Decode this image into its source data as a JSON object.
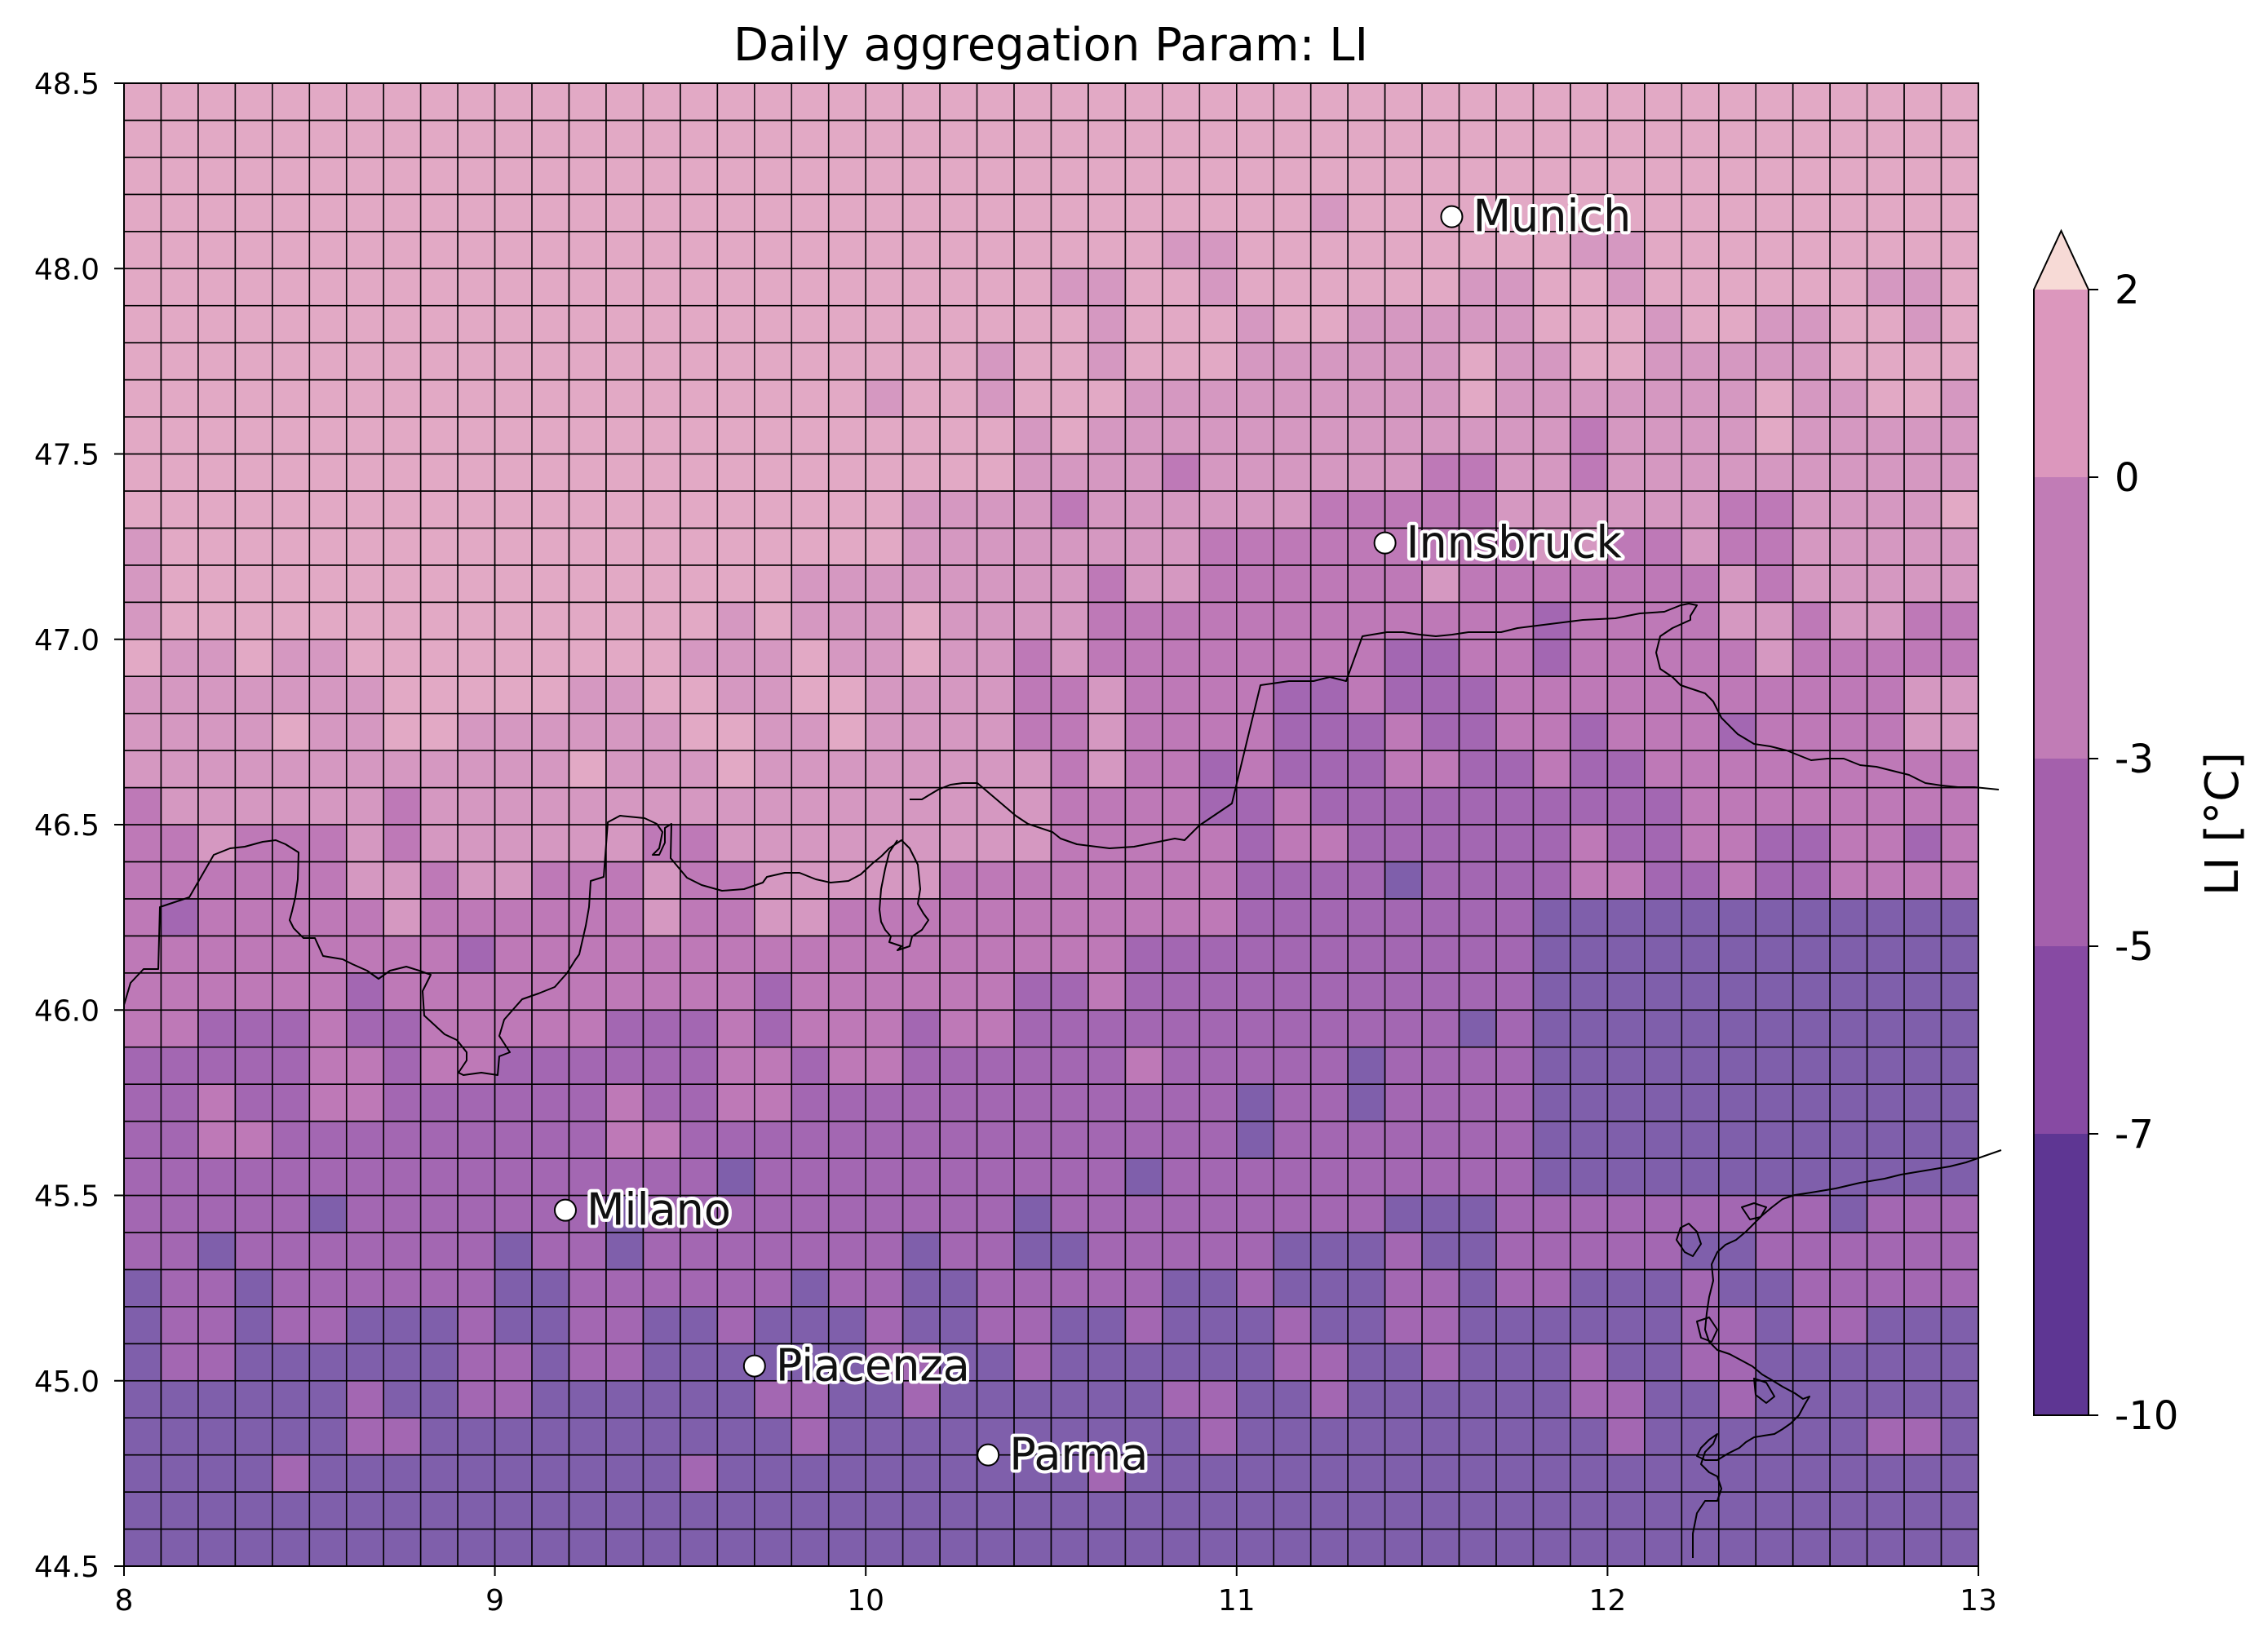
{
  "title": "Daily aggregation Param: LI",
  "map": {
    "lon_range": [
      8,
      13
    ],
    "lat_range": [
      44.5,
      48.5
    ],
    "x_ticks": [
      "8",
      "9",
      "10",
      "11",
      "12",
      "13"
    ],
    "y_ticks": [
      "44.5",
      "45.0",
      "45.5",
      "46.0",
      "46.5",
      "47.0",
      "47.5",
      "48.0",
      "48.5"
    ],
    "grid_resolution_deg": 0.1,
    "cell_edge_color": "#000000",
    "cities": [
      {
        "name": "Munich",
        "lon": 11.58,
        "lat": 48.14
      },
      {
        "name": "Innsbruck",
        "lon": 11.4,
        "lat": 47.26
      },
      {
        "name": "Milano",
        "lon": 9.19,
        "lat": 45.46
      },
      {
        "name": "Piacenza",
        "lon": 9.7,
        "lat": 45.04
      },
      {
        "name": "Parma",
        "lon": 10.33,
        "lat": 44.8
      }
    ]
  },
  "colorbar": {
    "label": "LI [°C]",
    "ticks": [
      "2",
      "0",
      "-3",
      "-5",
      "-7",
      "-10"
    ],
    "levels": [
      -10,
      -7,
      -5,
      -3,
      0,
      2
    ],
    "colors": [
      "#5e3693",
      "#874aa3",
      "#a460ac",
      "#c17cb6",
      "#dc97bd"
    ],
    "extend_max_color": "#f7dad6"
  },
  "cell_colors": [
    "#7f5fab",
    "#a367b2",
    "#be79b7",
    "#d598c1",
    "#e2a9c5"
  ]
}
